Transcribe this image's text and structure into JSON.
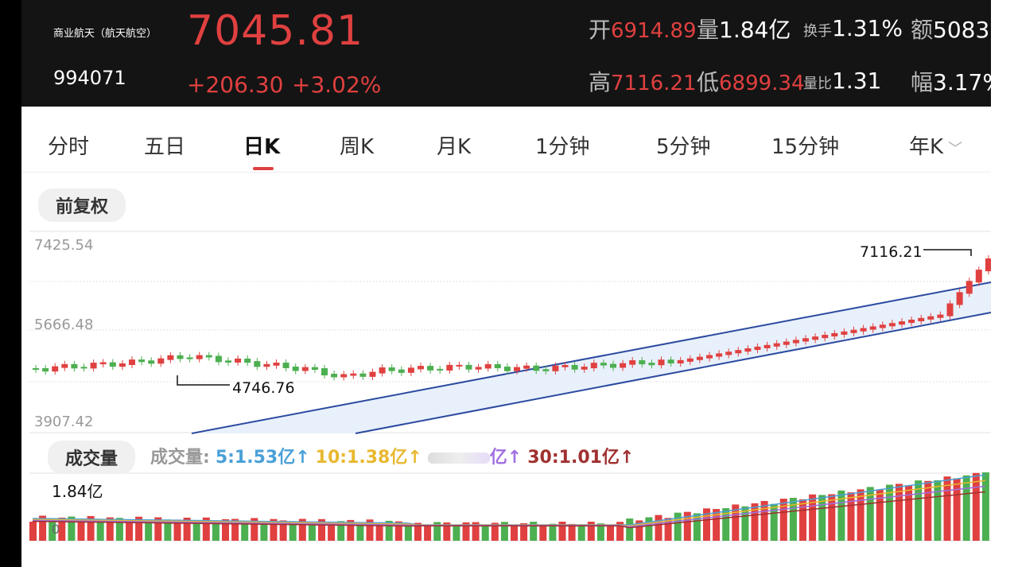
{
  "header": {
    "name": "商业航天（航天航空）",
    "code": "994071",
    "price": "7045.81",
    "change": "+206.30",
    "change_pct": "+3.02%",
    "stats": {
      "open_label": "开",
      "open": "6914.89",
      "vol_label": "量",
      "vol": "1.84亿",
      "turnover_label": "换手",
      "turnover": "1.31%",
      "amount_label": "额",
      "amount": "5083",
      "high_label": "高",
      "high": "7116.21",
      "low_label": "低",
      "low": "6899.34",
      "ratio_label": "量比",
      "ratio": "1.31",
      "amp_label": "幅",
      "amp": "3.17%"
    }
  },
  "tabs": [
    {
      "label": "分时"
    },
    {
      "label": "五日"
    },
    {
      "label": "日K"
    },
    {
      "label": "周K"
    },
    {
      "label": "月K"
    },
    {
      "label": "1分钟"
    },
    {
      "label": "5分钟"
    },
    {
      "label": "15分钟"
    },
    {
      "label": "年K"
    }
  ],
  "active_tab": "日K",
  "fq_button": "前复权",
  "chart": {
    "y_labels": [
      "7425.54",
      "5666.48",
      "3907.42"
    ],
    "max_annotation": "7116.21",
    "min_annotation": "4746.76"
  },
  "volume": {
    "button": "成交量",
    "legend_title": "成交量:",
    "ma5": "5:1.53亿",
    "ma10": "10:1.38亿",
    "ma20_unit": "亿",
    "ma30": "30:1.01亿",
    "max_label": "1.84亿",
    "zero_label": "0"
  },
  "colors": {
    "up": "#e04040",
    "down": "#4caf50",
    "channel": "#2b4aa0",
    "ma5": "#4aa0d8",
    "ma10": "#e8b830",
    "ma20": "#a06ee0",
    "ma30": "#a03030"
  },
  "chart_data": {
    "type": "candlestick",
    "series": [
      {
        "name": "kline",
        "open": [],
        "close": [],
        "high": [],
        "low": []
      }
    ]
  }
}
